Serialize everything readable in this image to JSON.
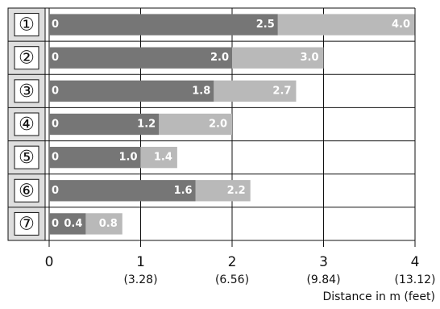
{
  "chart_data": {
    "type": "range-bar",
    "categories": [
      "①",
      "②",
      "③",
      "④",
      "⑤",
      "⑥",
      "⑦"
    ],
    "bar_start": 0,
    "series": [
      {
        "color": "#767676",
        "values": [
          2.5,
          2.0,
          1.8,
          1.2,
          1.0,
          1.6,
          0.4
        ],
        "value_labels": [
          "2.5",
          "2.0",
          "1.8",
          "1.2",
          "1.0",
          "1.6",
          "0.4"
        ]
      },
      {
        "color": "#b9b9b9",
        "values": [
          4.0,
          3.0,
          2.7,
          2.0,
          1.4,
          2.2,
          0.8
        ],
        "value_labels": [
          "4.0",
          "3.0",
          "2.7",
          "2.0",
          "1.4",
          "2.2",
          "0.8"
        ]
      }
    ],
    "xlim": [
      0,
      4
    ],
    "xticks": [
      0,
      1,
      2,
      3,
      4
    ],
    "xtick_sublabels": [
      null,
      "(3.28)",
      "(6.56)",
      "(9.84)",
      "(13.12)"
    ],
    "x_label": "Distance in m (feet)"
  }
}
